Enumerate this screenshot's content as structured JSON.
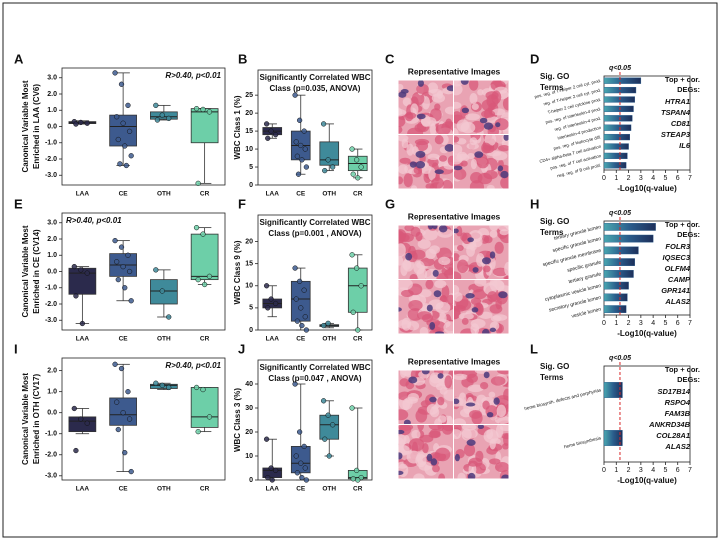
{
  "chart_data": [
    {
      "type": "box",
      "letter": "A",
      "ylabel": [
        "Canonical Variable Most",
        "Enriched in LAA (CV6)"
      ],
      "annotation": "R>0.40, p<0.01",
      "categories": [
        "LAA",
        "CE",
        "OTH",
        "CR"
      ],
      "colors": [
        "#2b2a4c",
        "#3d5a8e",
        "#3f8a9a",
        "#6dcfa8"
      ],
      "ylim": [
        -3.6,
        3.6
      ],
      "yticks": [
        {
          "value": 3,
          "label": "3.0"
        },
        {
          "value": 2,
          "label": "2.0"
        },
        {
          "value": 1,
          "label": "1.0"
        },
        {
          "value": 0,
          "label": "0.0"
        },
        {
          "value": -1,
          "label": "-1.0"
        },
        {
          "value": -2,
          "label": "-2.0"
        },
        {
          "value": -3,
          "label": "-3.0"
        }
      ],
      "boxes": [
        {
          "min": 0.15,
          "q1": 0.18,
          "median": 0.23,
          "q3": 0.3,
          "max": 0.35,
          "points": [
            0.3,
            0.25,
            0.2,
            0.15
          ]
        },
        {
          "min": -2.4,
          "q1": -1.2,
          "median": 0.0,
          "q3": 0.7,
          "max": 3.3,
          "points": [
            3.3,
            2.6,
            1.3,
            0.6,
            0.2,
            -0.3,
            -0.8,
            -1.2,
            -1.8,
            -2.3,
            -2.4
          ]
        },
        {
          "min": 0.4,
          "q1": 0.45,
          "median": 0.6,
          "q3": 0.9,
          "max": 1.3,
          "points": [
            1.3,
            0.7,
            0.5,
            0.4
          ]
        },
        {
          "min": -3.5,
          "q1": -1.0,
          "median": 0.9,
          "q3": 1.1,
          "max": 1.1,
          "points": [
            1.1,
            1.05,
            0.9,
            -3.5
          ]
        }
      ]
    },
    {
      "type": "box",
      "letter": "B",
      "ylabel": [
        "WBC Class 1 (%)"
      ],
      "title": [
        "Significantly Correlated WBC",
        "Class (p=0.035, ANOVA)"
      ],
      "categories": [
        "LAA",
        "CE",
        "OTH",
        "CR"
      ],
      "colors": [
        "#2b2a4c",
        "#3d5a8e",
        "#3f8a9a",
        "#6dcfa8"
      ],
      "ylim": [
        0,
        32
      ],
      "yticks": [
        0,
        5,
        10,
        15,
        20,
        25
      ],
      "boxes": [
        {
          "min": 13,
          "q1": 14,
          "median": 15,
          "q3": 16,
          "max": 17,
          "points": [
            17,
            15,
            14,
            13
          ]
        },
        {
          "min": 3,
          "q1": 7,
          "median": 11,
          "q3": 15,
          "max": 25,
          "points": [
            25,
            18,
            15,
            12,
            11,
            10,
            8,
            7,
            5,
            3
          ]
        },
        {
          "min": 4,
          "q1": 5.5,
          "median": 7,
          "q3": 12,
          "max": 17,
          "points": [
            17,
            7,
            5,
            4
          ]
        },
        {
          "min": 2,
          "q1": 4,
          "median": 6,
          "q3": 8,
          "max": 10,
          "points": [
            10,
            7,
            5,
            3,
            2
          ]
        }
      ]
    },
    {
      "type": "hbar",
      "letter": "D",
      "heading": [
        "Sig. GO",
        "Terms"
      ],
      "threshold": 1.3,
      "threshold_label": "q<0.05",
      "genes_title": [
        "Top + cor.",
        "DEGs:"
      ],
      "genes": [
        "HTRA1",
        "TSPAN4",
        "CD81",
        "STEAP3",
        "IL6"
      ],
      "xlabel": "-Log10(q-value)",
      "xlim": [
        0,
        7
      ],
      "xticks": [
        0,
        1,
        2,
        3,
        4,
        5,
        6,
        7
      ],
      "color": "#2a5d8c",
      "categories": [
        "pos. reg. of T-helper 2 cell cyt. prod.",
        "reg. of T-helper 2 cell cyt. prod.",
        "T-helper 2 cell cytokine prod.",
        "pos. reg. of interleukin-4 prod.",
        "reg. of interleukin-4 prod.",
        "interleukin-4 production",
        "pos. reg. of leukocyte diff.",
        "CD4+ alpha-beta T cell activation",
        "pos. reg. of T cell activation",
        "neg. reg. of B cell prolif."
      ],
      "values": [
        3.0,
        2.6,
        2.5,
        2.4,
        2.3,
        2.2,
        2.1,
        2.0,
        1.9,
        1.8
      ]
    },
    {
      "type": "box",
      "letter": "E",
      "ylabel": [
        "Canonical Variable Most",
        "Enriched in CE (CV14)"
      ],
      "annotation": "R>0.40, p<0.01",
      "categories": [
        "LAA",
        "CE",
        "OTH",
        "CR"
      ],
      "colors": [
        "#2b2a4c",
        "#3d5a8e",
        "#3f8a9a",
        "#6dcfa8"
      ],
      "ylim": [
        -3.6,
        3.6
      ],
      "yticks": [
        {
          "value": 3,
          "label": "3.0"
        },
        {
          "value": 2,
          "label": "2.0"
        },
        {
          "value": 1,
          "label": "1.0"
        },
        {
          "value": 0,
          "label": "0.0"
        },
        {
          "value": -1,
          "label": "-1.0"
        },
        {
          "value": -2,
          "label": "-2.0"
        },
        {
          "value": -3,
          "label": "-3.0"
        }
      ],
      "boxes": [
        {
          "min": -3.2,
          "q1": -1.4,
          "median": -0.1,
          "q3": 0.2,
          "max": 0.3,
          "points": [
            0.3,
            0.1,
            -0.1,
            -1.5,
            -3.2
          ]
        },
        {
          "min": -1.8,
          "q1": -0.3,
          "median": 0.4,
          "q3": 1.1,
          "max": 1.9,
          "points": [
            1.9,
            1.5,
            1.0,
            0.6,
            0.3,
            0.0,
            -0.5,
            -1.0,
            -1.8
          ]
        },
        {
          "min": -2.8,
          "q1": -2.0,
          "median": -1.2,
          "q3": -0.5,
          "max": 0.1,
          "points": [
            0.1,
            -1.2,
            -2.8
          ]
        },
        {
          "min": -0.8,
          "q1": -0.5,
          "median": -0.3,
          "q3": 2.3,
          "max": 2.7,
          "points": [
            2.7,
            2.3,
            -0.3,
            -0.5,
            -0.8
          ]
        }
      ]
    },
    {
      "type": "box",
      "letter": "F",
      "ylabel": [
        "WBC Class 9 (%)"
      ],
      "title": [
        "Significantly Correlated WBC",
        "Class (p=0.001 , ANOVA)"
      ],
      "categories": [
        "LAA",
        "CE",
        "OTH",
        "CR"
      ],
      "colors": [
        "#2b2a4c",
        "#3d5a8e",
        "#3f8a9a",
        "#6dcfa8"
      ],
      "ylim": [
        0,
        26
      ],
      "yticks": [
        0,
        5,
        10,
        15,
        20
      ],
      "boxes": [
        {
          "min": 3,
          "q1": 5,
          "median": 6,
          "q3": 7,
          "max": 10,
          "points": [
            10,
            7,
            6,
            5
          ]
        },
        {
          "min": 0,
          "q1": 2,
          "median": 7,
          "q3": 11,
          "max": 14,
          "points": [
            14,
            11,
            9,
            7,
            5,
            3,
            2,
            1,
            0
          ]
        },
        {
          "min": 0.5,
          "q1": 0.8,
          "median": 1,
          "q3": 1.2,
          "max": 1.5,
          "points": [
            1,
            1.5
          ]
        },
        {
          "min": 0,
          "q1": 4,
          "median": 10,
          "q3": 14,
          "max": 17,
          "points": [
            17,
            14,
            10,
            4,
            0
          ]
        }
      ]
    },
    {
      "type": "hbar",
      "letter": "H",
      "heading": [
        "Sig. GO",
        "Terms"
      ],
      "threshold": 1.3,
      "threshold_label": "q<0.05",
      "genes_title": [
        "Top + cor.",
        "DEGs:"
      ],
      "genes": [
        "FOLR3",
        "IQSEC3",
        "OLFM4",
        "CAMP",
        "GPR141",
        "ALAS2"
      ],
      "xlabel": "-Log10(q-value)",
      "xlim": [
        0,
        7
      ],
      "xticks": [
        0,
        1,
        2,
        3,
        4,
        5,
        6,
        7
      ],
      "color": "#2a5d8c",
      "categories": [
        "tertiary granule lumen",
        "specific granule lumen",
        "specific granule membrane",
        "specific granule",
        "tertiary granule",
        "cytoplasmic vesicle lumen",
        "secretory granule lumen",
        "vesicle lumen"
      ],
      "values": [
        4.2,
        4.0,
        2.8,
        2.5,
        2.4,
        2.0,
        1.9,
        1.8
      ]
    },
    {
      "type": "box",
      "letter": "I",
      "ylabel": [
        "Canonical Variable Most",
        "Enriched in OTH (CV17)"
      ],
      "annotation": "R>0.40, p<0.01",
      "categories": [
        "LAA",
        "CE",
        "OTH",
        "CR"
      ],
      "colors": [
        "#2b2a4c",
        "#3d5a8e",
        "#3f8a9a",
        "#6dcfa8"
      ],
      "ylim": [
        -3.2,
        2.6
      ],
      "yticks": [
        {
          "value": 2,
          "label": "2.0"
        },
        {
          "value": 1,
          "label": "1.0"
        },
        {
          "value": 0,
          "label": "0.0"
        },
        {
          "value": -1,
          "label": "-1.0"
        },
        {
          "value": -2,
          "label": "-2.0"
        },
        {
          "value": -3,
          "label": "-3.0"
        }
      ],
      "boxes": [
        {
          "min": -1.0,
          "q1": -0.9,
          "median": -0.4,
          "q3": -0.2,
          "max": 0.2,
          "points": [
            0.2,
            -0.3,
            -0.5,
            -1.8
          ]
        },
        {
          "min": -2.8,
          "q1": -0.6,
          "median": -0.1,
          "q3": 0.7,
          "max": 2.3,
          "points": [
            2.3,
            2.1,
            1.0,
            0.5,
            0.0,
            -0.3,
            -0.8,
            -1.9,
            -2.8
          ]
        },
        {
          "min": 1.1,
          "q1": 1.15,
          "median": 1.3,
          "q3": 1.35,
          "max": 1.4,
          "points": [
            1.4,
            1.3,
            1.2
          ]
        },
        {
          "min": -0.9,
          "q1": -0.7,
          "median": -0.2,
          "q3": 1.2,
          "max": 1.2,
          "points": [
            1.2,
            1.1,
            -0.2,
            -0.9
          ]
        }
      ]
    },
    {
      "type": "box",
      "letter": "J",
      "ylabel": [
        "WBC Class 3 (%)"
      ],
      "title": [
        "Significantly Correlated WBC",
        "Class (p=0.047 , ANOVA)"
      ],
      "categories": [
        "LAA",
        "CE",
        "OTH",
        "CR"
      ],
      "colors": [
        "#2b2a4c",
        "#3d5a8e",
        "#3f8a9a",
        "#6dcfa8"
      ],
      "ylim": [
        0,
        50
      ],
      "yticks": [
        0,
        10,
        20,
        30,
        40
      ],
      "boxes": [
        {
          "min": 0,
          "q1": 1,
          "median": 4,
          "q3": 5,
          "max": 17,
          "points": [
            17,
            5,
            4,
            1,
            0
          ]
        },
        {
          "min": 0,
          "q1": 3,
          "median": 7,
          "q3": 14,
          "max": 40,
          "points": [
            40,
            20,
            14,
            10,
            7,
            5,
            3,
            1,
            0
          ]
        },
        {
          "min": 10,
          "q1": 17,
          "median": 23,
          "q3": 27,
          "max": 33,
          "points": [
            33,
            27,
            23,
            17,
            10
          ]
        },
        {
          "min": 0,
          "q1": 0.5,
          "median": 1,
          "q3": 4,
          "max": 30,
          "points": [
            30,
            4,
            1,
            0.5,
            0
          ]
        }
      ]
    },
    {
      "type": "hbar",
      "letter": "L",
      "heading": [
        "Sig. GO",
        "Terms"
      ],
      "threshold": 1.3,
      "threshold_label": "q<0.05",
      "genes_title": [
        "Top + cor.",
        "DEGs:"
      ],
      "genes": [
        "SD17B14",
        "RSPO4",
        "FAM3B",
        "ANKRD34B",
        "COL28A1",
        "ALAS2"
      ],
      "xlabel": "-Log10(q-value)",
      "xlim": [
        0,
        7
      ],
      "xticks": [
        0,
        1,
        2,
        3,
        4,
        5,
        6,
        7
      ],
      "color": "#2a5d8c",
      "categories": [
        "heme biosynth. defects and porphyrias",
        "heme biosynthesis"
      ],
      "values": [
        1.5,
        1.5
      ]
    }
  ],
  "images": [
    {
      "letter": "C",
      "title": "Representative Images"
    },
    {
      "letter": "G",
      "title": "Representative Images"
    },
    {
      "letter": "K",
      "title": "Representative Images"
    }
  ]
}
